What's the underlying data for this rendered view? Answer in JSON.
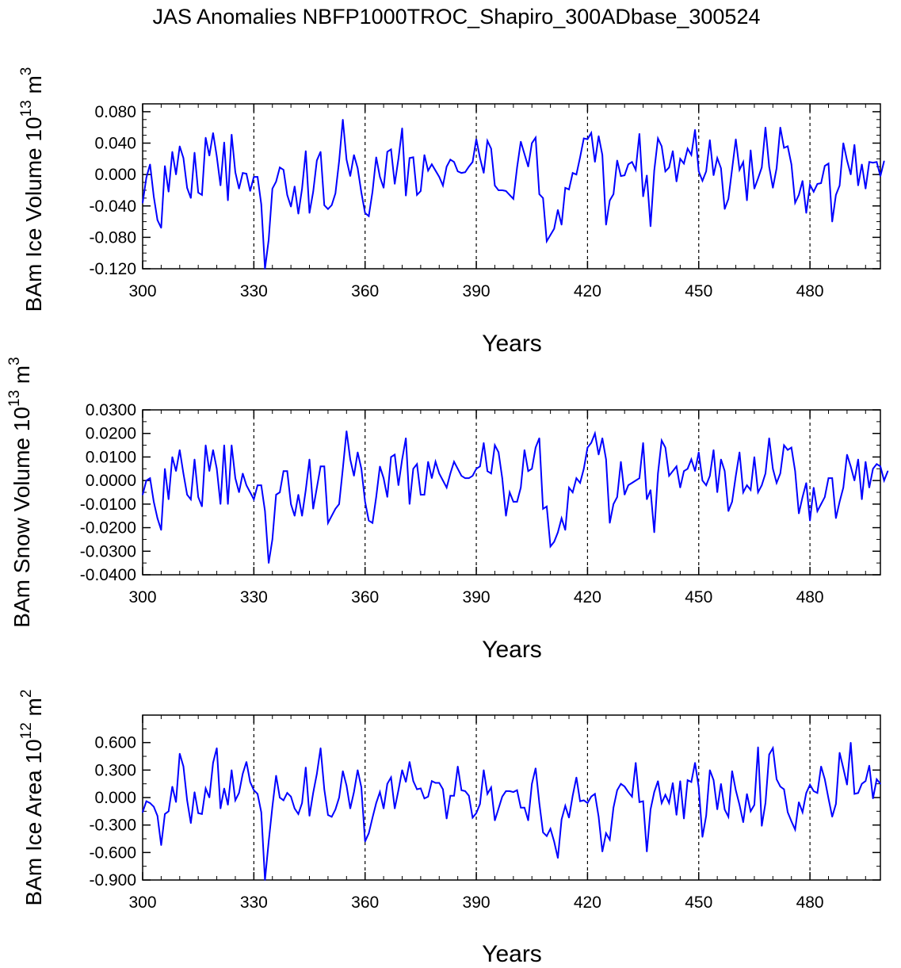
{
  "figure": {
    "title": "JAS Anomalies NBFP1000TROC_Shapiro_300ADbase_300524"
  },
  "colors": {
    "line": "#0000ff",
    "axis": "#000000",
    "grid": "#000000"
  },
  "chart_data": [
    {
      "type": "line",
      "name": "ice-volume",
      "ylabel_main": "BAm Ice Volume 10",
      "ylabel_exp": "13",
      "ylabel_unit": " m",
      "ylabel_unit_exp": "3",
      "xlabel": "Years",
      "xlim": [
        300,
        499
      ],
      "ylim": [
        -0.12,
        0.09
      ],
      "xticks": [
        300,
        330,
        360,
        390,
        420,
        450,
        480
      ],
      "xtick_labels": [
        "300",
        "330",
        "360",
        "390",
        "420",
        "450",
        "480"
      ],
      "yticks": [
        0.08,
        0.04,
        0.0,
        -0.04,
        -0.08,
        -0.12
      ],
      "ytick_labels": [
        "0.080",
        "0.040",
        "0.000",
        "-0.040",
        "-0.080",
        "-0.120"
      ],
      "yminor": 0.01,
      "vlines": [
        330,
        360,
        390,
        420,
        450,
        480
      ],
      "x_start": 300,
      "values": [
        -0.036,
        -0.004,
        0.013,
        -0.028,
        -0.058,
        -0.068,
        0.011,
        -0.022,
        0.029,
        0.0,
        0.036,
        0.021,
        -0.017,
        -0.03,
        0.028,
        -0.023,
        -0.026,
        0.047,
        0.024,
        0.053,
        0.023,
        -0.014,
        0.041,
        -0.033,
        0.051,
        0.003,
        -0.018,
        0.002,
        0.001,
        -0.021,
        -0.003,
        -0.003,
        -0.038,
        -0.12,
        -0.083,
        -0.018,
        -0.009,
        0.009,
        0.006,
        -0.026,
        -0.041,
        -0.015,
        -0.05,
        -0.018,
        0.03,
        -0.049,
        -0.022,
        0.018,
        0.029,
        -0.039,
        -0.044,
        -0.039,
        -0.024,
        0.017,
        0.07,
        0.019,
        -0.002,
        0.025,
        0.008,
        -0.023,
        -0.049,
        -0.053,
        -0.022,
        0.022,
        -0.003,
        -0.017,
        0.029,
        0.032,
        -0.012,
        0.02,
        0.059,
        -0.027,
        0.021,
        0.022,
        -0.026,
        -0.021,
        0.025,
        0.005,
        0.013,
        0.005,
        -0.003,
        -0.014,
        0.01,
        0.019,
        0.016,
        0.004,
        0.002,
        0.003,
        0.01,
        0.016,
        0.045,
        0.021,
        0.002,
        0.043,
        0.033,
        -0.014,
        -0.02,
        -0.02,
        -0.021,
        -0.026,
        -0.031,
        0.009,
        0.042,
        0.026,
        0.01,
        0.04,
        0.047,
        -0.025,
        -0.03,
        -0.085,
        -0.077,
        -0.069,
        -0.045,
        -0.064,
        -0.017,
        -0.019,
        0.002,
        0.0,
        0.022,
        0.046,
        0.045,
        0.053,
        0.016,
        0.049,
        0.025,
        -0.064,
        -0.033,
        -0.025,
        0.018,
        -0.002,
        -0.001,
        0.013,
        0.016,
        0.006,
        0.052,
        -0.028,
        -0.001,
        -0.066,
        0.005,
        0.046,
        0.036,
        0.004,
        0.009,
        0.03,
        -0.009,
        0.02,
        0.014,
        0.033,
        0.025,
        0.057,
        0.004,
        -0.008,
        0.004,
        0.044,
        -0.001,
        0.021,
        0.008,
        -0.044,
        -0.031,
        0.007,
        0.045,
        0.006,
        0.016,
        -0.033,
        0.031,
        -0.018,
        -0.005,
        0.009,
        0.06,
        0.01,
        -0.017,
        0.008,
        0.06,
        0.034,
        0.036,
        0.013,
        -0.036,
        -0.026,
        -0.008,
        -0.049,
        -0.013,
        -0.022,
        -0.012,
        -0.011,
        0.011,
        0.014,
        -0.06,
        -0.026,
        -0.014,
        0.04,
        0.018,
        0.0,
        0.038,
        -0.014,
        0.013,
        -0.018,
        0.016,
        0.015,
        0.016,
        -0.002,
        0.017
      ]
    },
    {
      "type": "line",
      "name": "snow-volume",
      "ylabel_main": "BAm Snow Volume 10",
      "ylabel_exp": "13",
      "ylabel_unit": " m",
      "ylabel_unit_exp": "3",
      "xlabel": "Years",
      "xlim": [
        300,
        499
      ],
      "ylim": [
        -0.04,
        0.03
      ],
      "xticks": [
        300,
        330,
        360,
        390,
        420,
        450,
        480
      ],
      "xtick_labels": [
        "300",
        "330",
        "360",
        "390",
        "420",
        "450",
        "480"
      ],
      "yticks": [
        0.03,
        0.02,
        0.01,
        0.0,
        -0.01,
        -0.02,
        -0.03,
        -0.04
      ],
      "ytick_labels": [
        "0.0300",
        "0.0200",
        "0.0100",
        "0.0000",
        "-0.0100",
        "-0.0200",
        "-0.0300",
        "-0.0400"
      ],
      "yminor": 0.005,
      "vlines": [
        330,
        360,
        390,
        420,
        450,
        480
      ],
      "x_start": 300,
      "values": [
        -0.006,
        0.0,
        0.001,
        -0.009,
        -0.016,
        -0.021,
        0.005,
        -0.008,
        0.01,
        0.004,
        0.013,
        0.003,
        -0.006,
        -0.008,
        0.009,
        -0.007,
        -0.011,
        0.015,
        0.004,
        0.013,
        0.005,
        -0.01,
        0.015,
        -0.01,
        0.015,
        0.001,
        -0.005,
        0.003,
        -0.002,
        -0.005,
        -0.008,
        -0.002,
        -0.002,
        -0.013,
        -0.035,
        -0.025,
        -0.006,
        -0.005,
        0.004,
        0.004,
        -0.01,
        -0.015,
        -0.006,
        -0.015,
        -0.004,
        0.009,
        -0.012,
        -0.003,
        0.006,
        0.006,
        -0.018,
        -0.015,
        -0.012,
        -0.01,
        0.005,
        0.021,
        0.009,
        0.002,
        0.012,
        0.005,
        -0.009,
        -0.017,
        -0.018,
        -0.007,
        0.006,
        0.001,
        -0.007,
        0.01,
        0.011,
        -0.002,
        0.009,
        0.018,
        -0.01,
        0.005,
        0.007,
        -0.006,
        -0.006,
        0.008,
        0.001,
        0.008,
        0.003,
        0.0,
        -0.003,
        0.003,
        0.008,
        0.005,
        0.002,
        0.001,
        0.001,
        0.002,
        0.005,
        0.006,
        0.016,
        0.004,
        0.003,
        0.015,
        0.012,
        0.001,
        -0.015,
        -0.005,
        -0.009,
        -0.009,
        -0.003,
        0.013,
        0.004,
        0.005,
        0.014,
        0.018,
        -0.012,
        -0.011,
        -0.028,
        -0.026,
        -0.022,
        -0.016,
        -0.021,
        -0.003,
        -0.005,
        0.001,
        -0.001,
        0.005,
        0.014,
        0.016,
        0.02,
        0.011,
        0.018,
        0.009,
        -0.018,
        -0.01,
        -0.007,
        0.008,
        -0.006,
        -0.002,
        -0.001,
        0.0,
        0.001,
        0.016,
        -0.008,
        -0.004,
        -0.022,
        0.003,
        0.017,
        0.014,
        0.002,
        0.004,
        0.006,
        -0.003,
        0.004,
        0.005,
        0.009,
        0.004,
        0.012,
        0.0,
        -0.002,
        0.002,
        0.013,
        -0.005,
        0.009,
        0.004,
        -0.013,
        -0.009,
        0.002,
        0.012,
        -0.005,
        -0.002,
        -0.004,
        0.01,
        -0.005,
        -0.002,
        0.003,
        0.018,
        0.005,
        -0.001,
        0.003,
        0.015,
        0.013,
        0.014,
        0.004,
        -0.014,
        -0.007,
        -0.001,
        -0.017,
        -0.003,
        -0.013,
        -0.01,
        -0.007,
        0.001,
        0.001,
        -0.016,
        -0.009,
        -0.003,
        0.011,
        0.006,
        0.0,
        0.009,
        -0.008,
        0.008,
        -0.003,
        0.005,
        0.007,
        0.006,
        0.0,
        0.004
      ]
    },
    {
      "type": "line",
      "name": "ice-area",
      "ylabel_main": "BAm Ice Area 10",
      "ylabel_exp": "12",
      "ylabel_unit": " m",
      "ylabel_unit_exp": "2",
      "xlabel": "Years",
      "xlim": [
        300,
        499
      ],
      "ylim": [
        -0.9,
        0.9
      ],
      "xticks": [
        300,
        330,
        360,
        390,
        420,
        450,
        480
      ],
      "xtick_labels": [
        "300",
        "330",
        "360",
        "390",
        "420",
        "450",
        "480"
      ],
      "yticks": [
        0.6,
        0.3,
        0.0,
        -0.3,
        -0.6,
        -0.9
      ],
      "ytick_labels": [
        "0.600",
        "0.300",
        "0.000",
        "-0.300",
        "-0.600",
        "-0.900"
      ],
      "yminor": 0.15,
      "vlines": [
        330,
        360,
        390,
        420,
        450,
        480
      ],
      "x_start": 300,
      "values": [
        -0.16,
        -0.04,
        -0.06,
        -0.1,
        -0.2,
        -0.52,
        -0.18,
        -0.15,
        0.12,
        -0.05,
        0.48,
        0.34,
        -0.03,
        -0.28,
        0.06,
        -0.17,
        -0.18,
        0.1,
        0.0,
        0.38,
        0.54,
        -0.12,
        0.1,
        -0.08,
        0.3,
        -0.03,
        0.05,
        0.26,
        0.39,
        0.17,
        0.08,
        0.04,
        -0.16,
        -0.9,
        -0.48,
        -0.1,
        0.24,
        0.0,
        -0.03,
        0.05,
        0.01,
        -0.12,
        -0.18,
        -0.06,
        0.33,
        -0.2,
        0.05,
        0.26,
        0.54,
        0.09,
        -0.19,
        -0.21,
        -0.13,
        0.0,
        0.29,
        0.13,
        -0.12,
        0.06,
        0.3,
        0.11,
        -0.48,
        -0.39,
        -0.22,
        -0.06,
        0.06,
        -0.12,
        0.15,
        0.22,
        -0.12,
        0.08,
        0.3,
        0.17,
        0.39,
        0.18,
        0.09,
        0.1,
        -0.01,
        0.01,
        0.18,
        0.16,
        0.16,
        0.09,
        -0.23,
        0.02,
        0.02,
        0.34,
        0.08,
        0.07,
        0.02,
        -0.22,
        -0.17,
        -0.07,
        0.3,
        0.04,
        0.11,
        -0.25,
        -0.12,
        0.01,
        0.07,
        0.07,
        0.06,
        0.08,
        -0.11,
        -0.11,
        -0.25,
        0.15,
        0.32,
        -0.06,
        -0.38,
        -0.42,
        -0.34,
        -0.48,
        -0.66,
        -0.24,
        -0.09,
        -0.22,
        0.02,
        0.22,
        -0.04,
        -0.03,
        -0.06,
        0.01,
        0.04,
        -0.21,
        -0.59,
        -0.39,
        -0.46,
        -0.11,
        0.08,
        0.15,
        0.12,
        0.06,
        0.01,
        0.38,
        -0.05,
        -0.04,
        -0.59,
        -0.13,
        0.06,
        0.18,
        -0.06,
        0.03,
        -0.06,
        0.16,
        -0.19,
        0.18,
        -0.23,
        0.19,
        0.17,
        0.38,
        0.11,
        -0.43,
        -0.2,
        0.3,
        0.19,
        -0.13,
        0.15,
        -0.13,
        -0.21,
        0.29,
        0.08,
        -0.08,
        -0.27,
        0.04,
        -0.15,
        -0.08,
        0.55,
        -0.31,
        -0.06,
        0.47,
        0.54,
        0.2,
        0.12,
        0.09,
        -0.16,
        -0.26,
        -0.35,
        -0.05,
        -0.16,
        0.05,
        0.14,
        0.07,
        0.05,
        0.34,
        0.2,
        -0.01,
        -0.21,
        -0.07,
        0.49,
        0.32,
        0.14,
        0.6,
        0.04,
        0.05,
        0.15,
        0.18,
        0.35,
        -0.01,
        0.2,
        0.15
      ]
    }
  ]
}
